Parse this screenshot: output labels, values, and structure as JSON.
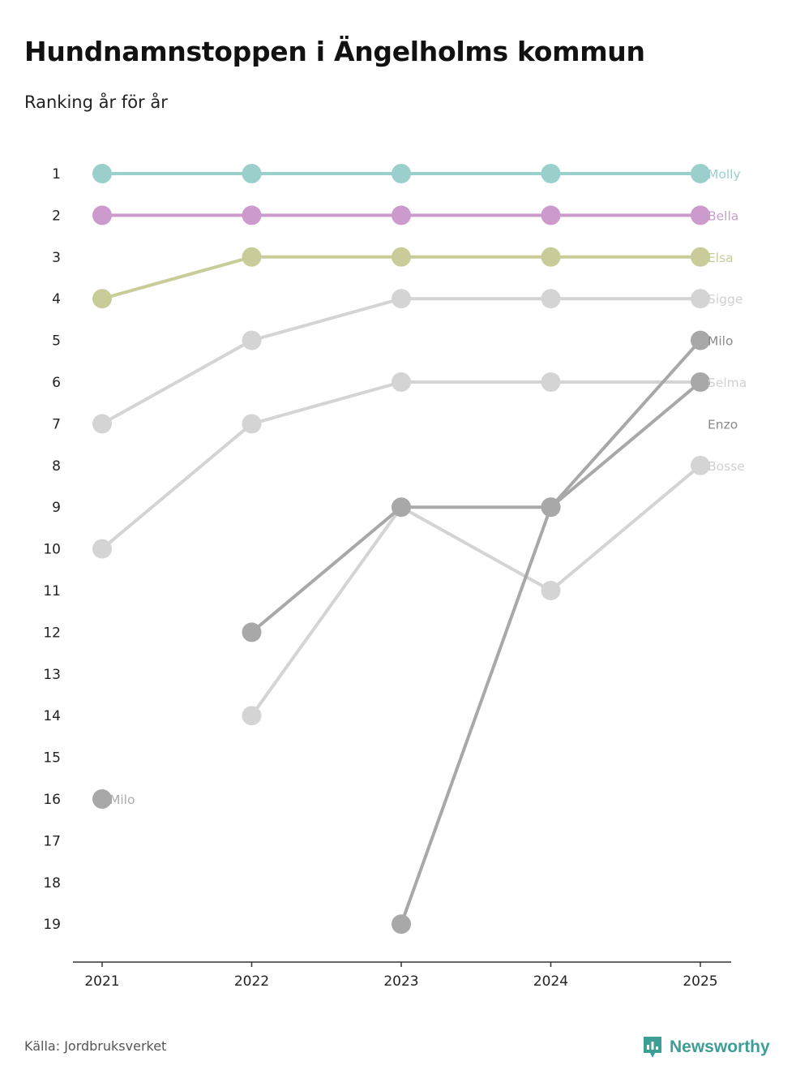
{
  "title": "Hundnamnstoppen i Ängelholms kommun",
  "subtitle": "Ranking år för år",
  "source": "Källa: Jordbruksverket",
  "brand": {
    "name": "Newsworthy",
    "icon": "newsworthy-logo-icon",
    "color": "#3d9e96"
  },
  "chart_data": {
    "type": "line",
    "title": "Hundnamnstoppen i Ängelholms kommun",
    "subtitle": "Ranking år för år",
    "xlabel": "",
    "ylabel": "",
    "x": [
      "2021",
      "2022",
      "2023",
      "2024",
      "2025"
    ],
    "ylim": [
      1,
      19
    ],
    "y_inverted": true,
    "yticks": [
      1,
      2,
      3,
      4,
      5,
      6,
      7,
      8,
      9,
      10,
      11,
      12,
      13,
      14,
      15,
      16,
      17,
      18,
      19
    ],
    "grid": false,
    "series": [
      {
        "name": "Molly",
        "color": "#9bcfcc",
        "values": [
          1,
          1,
          1,
          1,
          1
        ]
      },
      {
        "name": "Bella",
        "color": "#cc9acc",
        "values": [
          2,
          2,
          2,
          2,
          2
        ]
      },
      {
        "name": "Elsa",
        "color": "#c9cc98",
        "values": [
          4,
          3,
          3,
          3,
          3
        ]
      },
      {
        "name": "Sigge",
        "color": "#d4d4d4",
        "values": [
          7,
          5,
          4,
          4,
          4
        ]
      },
      {
        "name": "Selma",
        "color": "#d4d4d4",
        "values": [
          10,
          7,
          6,
          6,
          6
        ]
      },
      {
        "name": "Bosse",
        "color": "#d4d4d4",
        "values": [
          null,
          14,
          9,
          11,
          8
        ]
      },
      {
        "name": "Enzo",
        "color": "#a8a8a8",
        "values": [
          null,
          12,
          9,
          9,
          6
        ]
      },
      {
        "name": "Milo",
        "color": "#a8a8a8",
        "values": [
          16,
          null,
          19,
          9,
          5
        ]
      }
    ],
    "end_labels": [
      {
        "name": "Molly",
        "rank": 1,
        "color": "#9bcfcc"
      },
      {
        "name": "Bella",
        "rank": 2,
        "color": "#cc9acc"
      },
      {
        "name": "Elsa",
        "rank": 3,
        "color": "#c9cc98"
      },
      {
        "name": "Sigge",
        "rank": 4,
        "color": "#d0d0d0"
      },
      {
        "name": "Milo",
        "rank": 5,
        "color": "#8a8a8a"
      },
      {
        "name": "Selma",
        "rank": 6,
        "color": "#d0d0d0"
      },
      {
        "name": "Enzo",
        "rank": 7,
        "color": "#8a8a8a"
      },
      {
        "name": "Bosse",
        "rank": 8,
        "color": "#d0d0d0"
      }
    ],
    "start_labels": [
      {
        "name": "Milo",
        "rank": 16,
        "color": "#aaaaaa"
      }
    ]
  }
}
